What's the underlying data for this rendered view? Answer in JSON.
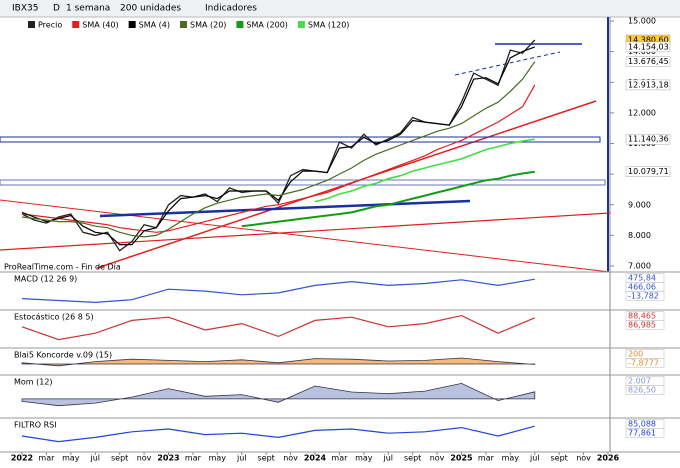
{
  "toolbar": {
    "symbol": "IBX35",
    "mode": "D",
    "period": "1 semana",
    "units": "200 unidades",
    "indicators": "Indicadores"
  },
  "footer": "ProRealTime.com - Fin de Día",
  "chart_data": [
    {
      "type": "line",
      "x": [
        "2022-01",
        "2022-02",
        "2022-03",
        "2022-04",
        "2022-05",
        "2022-06",
        "2022-07",
        "2022-08",
        "2022-09",
        "2022-10",
        "2022-11",
        "2022-12",
        "2023-01",
        "2023-02",
        "2023-03",
        "2023-04",
        "2023-05",
        "2023-06",
        "2023-07",
        "2023-08",
        "2023-09",
        "2023-10",
        "2023-11",
        "2023-12",
        "2024-01",
        "2024-02",
        "2024-03",
        "2024-04",
        "2024-05",
        "2024-06",
        "2024-07",
        "2024-08",
        "2024-09",
        "2024-10",
        "2024-11",
        "2024-12",
        "2025-01",
        "2025-02",
        "2025-03",
        "2025-04",
        "2025-05",
        "2025-06",
        "2025-07"
      ],
      "xlim": [
        "2022-01",
        "2026-01"
      ],
      "xticks": [
        {
          "value": "2022-01",
          "label": "2022"
        },
        {
          "value": "2022-03",
          "label": "mar"
        },
        {
          "value": "2022-05",
          "label": "may"
        },
        {
          "value": "2022-07",
          "label": "jul"
        },
        {
          "value": "2022-09",
          "label": "sept"
        },
        {
          "value": "2022-11",
          "label": "nov"
        },
        {
          "value": "2023-01",
          "label": "2023"
        },
        {
          "value": "2023-03",
          "label": "mar"
        },
        {
          "value": "2023-05",
          "label": "may"
        },
        {
          "value": "2023-07",
          "label": "jul"
        },
        {
          "value": "2023-09",
          "label": "sept"
        },
        {
          "value": "2023-11",
          "label": "nov"
        },
        {
          "value": "2024-01",
          "label": "2024"
        },
        {
          "value": "2024-03",
          "label": "mar"
        },
        {
          "value": "2024-05",
          "label": "may"
        },
        {
          "value": "2024-07",
          "label": "jul"
        },
        {
          "value": "2024-09",
          "label": "sept"
        },
        {
          "value": "2024-11",
          "label": "nov"
        },
        {
          "value": "2025-01",
          "label": "2025"
        },
        {
          "value": "2025-03",
          "label": "mar"
        },
        {
          "value": "2025-05",
          "label": "may"
        },
        {
          "value": "2025-07",
          "label": "jul"
        },
        {
          "value": "2025-09",
          "label": "sept"
        },
        {
          "value": "2025-11",
          "label": "nov"
        },
        {
          "value": "2026-01",
          "label": "2026"
        }
      ],
      "ylim": [
        6870,
        15000
      ],
      "yticks": [
        {
          "value": 7000,
          "label": "7.000"
        },
        {
          "value": 8000,
          "label": "8.000"
        },
        {
          "value": 9000,
          "label": "9.000"
        },
        {
          "value": 10000,
          "label": "10.000"
        },
        {
          "value": 11000,
          "label": "11.000"
        },
        {
          "value": 12000,
          "label": "12.000"
        },
        {
          "value": 13000,
          "label": "13.000"
        },
        {
          "value": 14000,
          "label": "14.000"
        },
        {
          "value": 15000,
          "label": "15.000"
        }
      ],
      "series": [
        {
          "name": "Precio",
          "color": "#222222",
          "values": [
            8700,
            8500,
            8400,
            8600,
            8700,
            8100,
            8000,
            8100,
            7500,
            7800,
            8350,
            8250,
            9000,
            9300,
            9250,
            9350,
            9100,
            9550,
            9400,
            9450,
            9450,
            9050,
            9950,
            10150,
            10100,
            10050,
            11050,
            10850,
            11300,
            10950,
            11150,
            11350,
            11850,
            11700,
            11650,
            11600,
            12350,
            13300,
            13100,
            12900,
            14050,
            13950,
            14380
          ]
        },
        {
          "name": "SMA (40)",
          "color": "#e02020",
          "values": [
            8700,
            8650,
            8600,
            8550,
            8500,
            8450,
            8400,
            8350,
            8250,
            8200,
            8150,
            8100,
            8150,
            8250,
            8350,
            8450,
            8550,
            8650,
            8750,
            8850,
            8950,
            9000,
            9100,
            9200,
            9300,
            9400,
            9550,
            9700,
            9850,
            10000,
            10150,
            10300,
            10450,
            10600,
            10800,
            10950,
            11100,
            11300,
            11500,
            11700,
            11950,
            12200,
            12913
          ]
        },
        {
          "name": "SMA (4)",
          "color": "#000000",
          "values": [
            8750,
            8600,
            8450,
            8550,
            8650,
            8300,
            8100,
            8050,
            7700,
            7700,
            8150,
            8250,
            8800,
            9200,
            9250,
            9300,
            9200,
            9450,
            9450,
            9450,
            9450,
            9150,
            9750,
            10100,
            10100,
            10050,
            10850,
            10900,
            11200,
            11000,
            11100,
            11300,
            11750,
            11700,
            11650,
            11600,
            12200,
            13100,
            13150,
            12950,
            13800,
            14000,
            14154
          ]
        },
        {
          "name": "SMA (20)",
          "color": "#4b6b1e",
          "values": [
            8600,
            8550,
            8500,
            8450,
            8450,
            8400,
            8300,
            8250,
            8100,
            8000,
            7950,
            8000,
            8200,
            8450,
            8700,
            8900,
            9050,
            9150,
            9250,
            9300,
            9350,
            9300,
            9400,
            9500,
            9650,
            9800,
            10000,
            10200,
            10450,
            10650,
            10800,
            10950,
            11100,
            11250,
            11400,
            11500,
            11650,
            11900,
            12150,
            12350,
            12700,
            13100,
            13676
          ]
        },
        {
          "name": "SMA (200)",
          "color": "#159c15",
          "values": [
            null,
            null,
            null,
            null,
            null,
            null,
            null,
            null,
            null,
            null,
            null,
            null,
            null,
            null,
            null,
            null,
            null,
            null,
            8300,
            8350,
            8400,
            8450,
            8500,
            8550,
            8600,
            8650,
            8700,
            8750,
            8850,
            8950,
            9000,
            9100,
            9200,
            9300,
            9400,
            9500,
            9600,
            9700,
            9800,
            9850,
            9950,
            10020,
            10080
          ]
        },
        {
          "name": "SMA (120)",
          "color": "#44dd44",
          "values": [
            null,
            null,
            null,
            null,
            null,
            null,
            null,
            null,
            null,
            null,
            null,
            null,
            null,
            null,
            null,
            null,
            null,
            null,
            null,
            null,
            null,
            null,
            null,
            null,
            9100,
            9200,
            9350,
            9450,
            9600,
            9700,
            9850,
            9950,
            10100,
            10200,
            10300,
            10400,
            10500,
            10650,
            10800,
            10900,
            11000,
            11080,
            11140
          ]
        }
      ],
      "tags": [
        {
          "value": 14380.6,
          "label": "14.380,60",
          "color": "#ffcc33"
        },
        {
          "value": 14154.03,
          "label": "14.154,03",
          "color": "#ffffff"
        },
        {
          "value": 13676.45,
          "label": "13.676,45",
          "color": "#ffffff"
        },
        {
          "value": 12913.18,
          "label": "12.913,18",
          "color": "#ffffff"
        },
        {
          "value": 11140.36,
          "label": "11.140,36",
          "color": "#ffffff"
        },
        {
          "value": 10079.71,
          "label": "10.079,71",
          "color": "#ffffff"
        }
      ]
    },
    {
      "type": "line",
      "title": "MACD (12 26 9)",
      "x": [
        "2022-01",
        "2022-04",
        "2022-07",
        "2022-10",
        "2023-01",
        "2023-04",
        "2023-07",
        "2023-10",
        "2024-01",
        "2024-04",
        "2024-07",
        "2024-10",
        "2025-01",
        "2025-04",
        "2025-07"
      ],
      "ylim": [
        -300,
        550
      ],
      "color": "#3355cc",
      "values": [
        -50,
        -100,
        -150,
        -80,
        200,
        150,
        50,
        100,
        300,
        400,
        300,
        350,
        450,
        300,
        466
      ],
      "tags": [
        "475,84",
        "466,06",
        "-13,782"
      ]
    },
    {
      "type": "line",
      "title": "Estocástico (26 8 5)",
      "x": [
        "2022-01",
        "2022-04",
        "2022-07",
        "2022-10",
        "2023-01",
        "2023-04",
        "2023-07",
        "2023-10",
        "2024-01",
        "2024-04",
        "2024-07",
        "2024-10",
        "2025-01",
        "2025-04",
        "2025-07"
      ],
      "ylim": [
        0,
        100
      ],
      "color": "#cc3333",
      "values": [
        60,
        20,
        40,
        80,
        90,
        50,
        70,
        30,
        80,
        90,
        60,
        70,
        95,
        40,
        88
      ],
      "tags": [
        "88,465",
        "86,985"
      ]
    },
    {
      "type": "area",
      "title": "Blai5 Koncorde v.09 (15)",
      "x": [
        "2022-01",
        "2022-04",
        "2022-07",
        "2022-10",
        "2023-01",
        "2023-04",
        "2023-07",
        "2023-10",
        "2024-01",
        "2024-04",
        "2024-07",
        "2024-10",
        "2025-01",
        "2025-04",
        "2025-07"
      ],
      "ylim": [
        -150,
        200
      ],
      "color": "#f08a24",
      "values": [
        20,
        -30,
        40,
        80,
        60,
        40,
        70,
        20,
        90,
        80,
        50,
        60,
        100,
        40,
        -7.9
      ],
      "tags": [
        "200",
        "-7,8777"
      ]
    },
    {
      "type": "area",
      "title": "Mom (12)",
      "x": [
        "2022-01",
        "2022-04",
        "2022-07",
        "2022-10",
        "2023-01",
        "2023-04",
        "2023-07",
        "2023-10",
        "2024-01",
        "2024-04",
        "2024-07",
        "2024-10",
        "2025-01",
        "2025-04",
        "2025-07"
      ],
      "ylim": [
        -2000,
        2200
      ],
      "color": "#8899cc",
      "values": [
        -300,
        -800,
        -500,
        200,
        1200,
        300,
        500,
        -400,
        1500,
        800,
        600,
        900,
        1800,
        -200,
        826
      ],
      "tags": [
        "2.007",
        "826,50"
      ]
    },
    {
      "type": "line",
      "title": "FILTRO RSI",
      "x": [
        "2022-01",
        "2022-04",
        "2022-07",
        "2022-10",
        "2023-01",
        "2023-04",
        "2023-07",
        "2023-10",
        "2024-01",
        "2024-04",
        "2024-07",
        "2024-10",
        "2025-01",
        "2025-04",
        "2025-07"
      ],
      "ylim": [
        0,
        100
      ],
      "color": "#2244dd",
      "values": [
        50,
        30,
        45,
        65,
        75,
        55,
        60,
        45,
        70,
        75,
        60,
        65,
        80,
        50,
        85
      ],
      "tags": [
        "85,088",
        "77,861"
      ]
    }
  ]
}
